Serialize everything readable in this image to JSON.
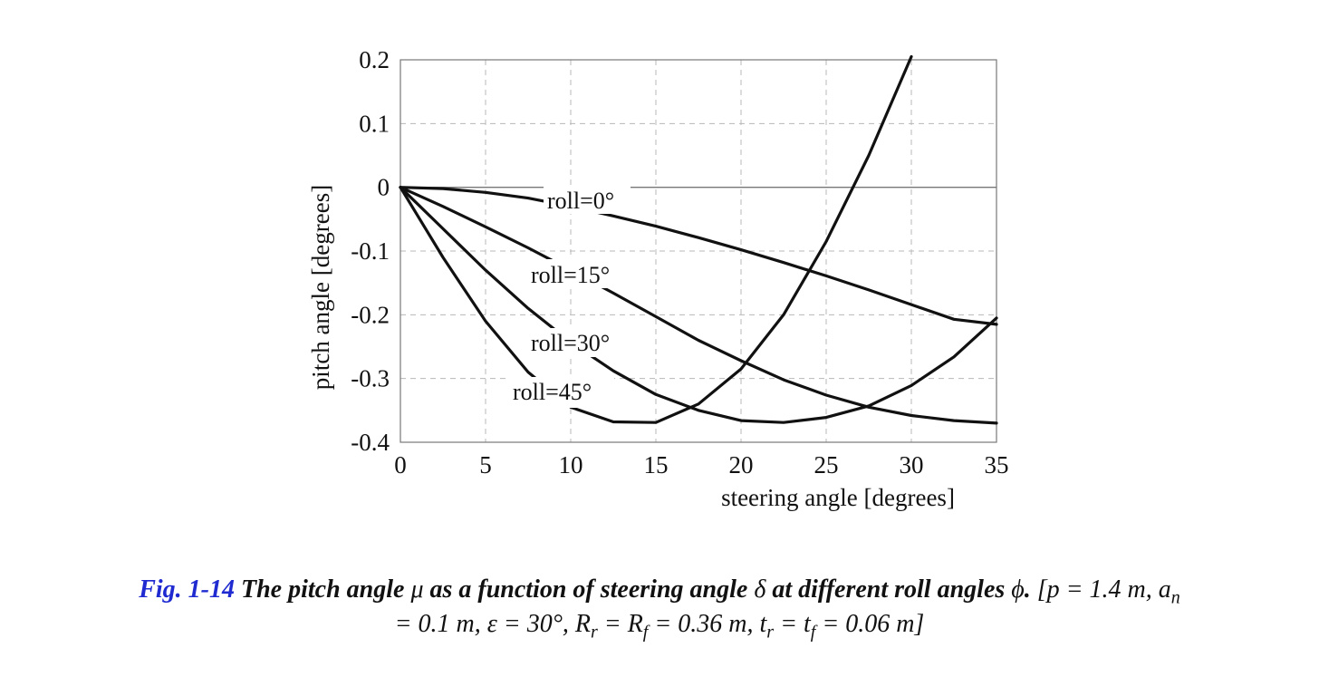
{
  "chart_data": {
    "type": "line",
    "xlabel": "steering angle [degrees]",
    "ylabel": "pitch angle [degrees]",
    "xlim": [
      0,
      35
    ],
    "ylim": [
      -0.4,
      0.2
    ],
    "x_ticks": [
      0,
      5,
      10,
      15,
      20,
      25,
      30,
      35
    ],
    "y_ticks": [
      0.2,
      0.1,
      0,
      -0.1,
      -0.2,
      -0.3,
      -0.4
    ],
    "grid": true,
    "series": [
      {
        "name": "roll=0°",
        "x": [
          0,
          2.5,
          5,
          7.5,
          10,
          12.5,
          15,
          17.5,
          20,
          22.5,
          25,
          27.5,
          30,
          32.5,
          35
        ],
        "y": [
          0,
          -0.002,
          -0.008,
          -0.017,
          -0.03,
          -0.045,
          -0.061,
          -0.079,
          -0.098,
          -0.118,
          -0.139,
          -0.161,
          -0.184,
          -0.207,
          -0.215
        ]
      },
      {
        "name": "roll=15°",
        "x": [
          0,
          2.5,
          5,
          7.5,
          10,
          12.5,
          15,
          17.5,
          20,
          22.5,
          25,
          27.5,
          30,
          32.5,
          35
        ],
        "y": [
          0,
          -0.03,
          -0.062,
          -0.095,
          -0.13,
          -0.166,
          -0.203,
          -0.24,
          -0.272,
          -0.302,
          -0.326,
          -0.345,
          -0.358,
          -0.366,
          -0.37
        ]
      },
      {
        "name": "roll=30°",
        "x": [
          0,
          2.5,
          5,
          7.5,
          10,
          12.5,
          15,
          17.5,
          20,
          22.5,
          25,
          27.5,
          30,
          32.5,
          35
        ],
        "y": [
          0,
          -0.065,
          -0.13,
          -0.19,
          -0.243,
          -0.288,
          -0.325,
          -0.35,
          -0.366,
          -0.369,
          -0.361,
          -0.343,
          -0.311,
          -0.266,
          -0.205
        ]
      },
      {
        "name": "roll=45°",
        "x": [
          0,
          2.5,
          5,
          7.5,
          10,
          12.5,
          15,
          17.5,
          20,
          22.5,
          25,
          27.5,
          30
        ],
        "y": [
          0,
          -0.11,
          -0.21,
          -0.29,
          -0.345,
          -0.368,
          -0.369,
          -0.34,
          -0.285,
          -0.2,
          -0.085,
          0.05,
          0.205
        ]
      }
    ]
  },
  "caption": {
    "fig_number": "Fig. 1-14",
    "title_part1": "The pitch angle ",
    "mu_symbol": "μ",
    "title_part2": " as a function of steering angle ",
    "delta_symbol": "δ",
    "title_part3": " at different roll angles ",
    "phi_symbol": "ϕ",
    "title_end": ".",
    "params_1": "[p = 1.4 m, a",
    "sub_n": "n",
    "params_2": "= 0.1 m, ε = 30°, R",
    "sub_r1": "r",
    "params_3": " = R",
    "sub_f1": "f",
    "params_4": " = 0.36 m, t",
    "sub_r2": "r",
    "params_5": " = t",
    "sub_f2": "f",
    "params_6": " = 0.06 m]"
  },
  "colors": {
    "line": "#111111",
    "grid": "#b8b8b8",
    "frame": "#777777",
    "caption_accent": "#1f2bd0"
  }
}
